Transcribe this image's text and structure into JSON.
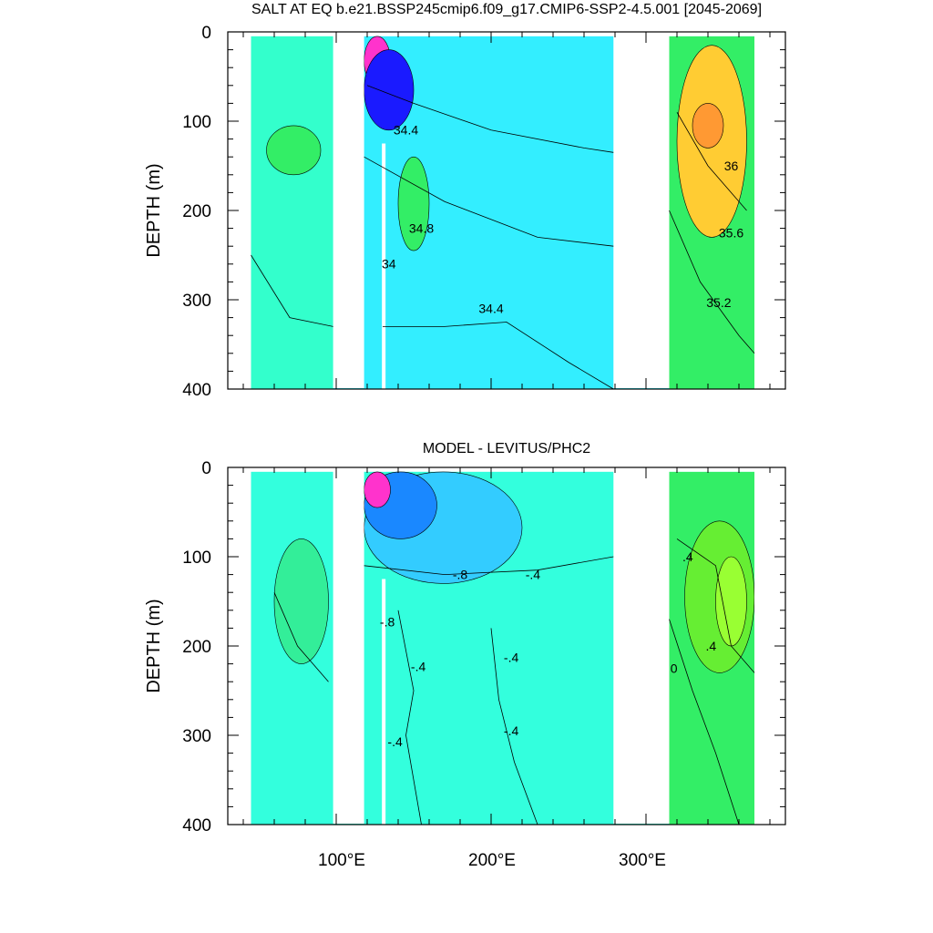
{
  "chart_data": [
    {
      "type": "heatmap",
      "title": "SALT AT EQ b.e21.BSSP245cmip6.f09_g17.CMIP6-SSP2-4.5.001 [2045-2069]",
      "ylabel": "DEPTH (m)",
      "xlim": [
        30,
        390
      ],
      "ylim": [
        400,
        0
      ],
      "yticks": [
        0,
        100,
        200,
        300,
        400
      ],
      "xticks": [
        100,
        200,
        300
      ],
      "grid": false,
      "land_columns_deg_e": [
        [
          98,
          118
        ],
        [
          279,
          315
        ]
      ],
      "background_color": "#33eeff",
      "regions": [
        {
          "lon": [
            45,
            98
          ],
          "depth": [
            5,
            400
          ],
          "value": 34.6,
          "color": "#33ffcc"
        },
        {
          "lon": [
            55,
            90
          ],
          "depth": [
            105,
            160
          ],
          "value": 35.0,
          "color": "#33ee66"
        },
        {
          "lon": [
            118,
            279
          ],
          "depth": [
            5,
            400
          ],
          "value": 34.2,
          "color": "#33eeff"
        },
        {
          "lon": [
            118,
            135
          ],
          "depth": [
            5,
            60
          ],
          "value": 32.5,
          "color": "#ff33cc"
        },
        {
          "lon": [
            118,
            150
          ],
          "depth": [
            20,
            110
          ],
          "value": 33.0,
          "color": "#1a1aff"
        },
        {
          "lon": [
            140,
            160
          ],
          "depth": [
            140,
            245
          ],
          "value": 34.8,
          "color": "#33ee66"
        },
        {
          "lon": [
            315,
            370
          ],
          "depth": [
            5,
            400
          ],
          "value": 35.4,
          "color": "#33ee66"
        },
        {
          "lon": [
            320,
            365
          ],
          "depth": [
            15,
            230
          ],
          "value": 36.0,
          "color": "#ffcc33"
        },
        {
          "lon": [
            330,
            350
          ],
          "depth": [
            80,
            130
          ],
          "value": 36.2,
          "color": "#ff9933"
        }
      ],
      "contour_labels": [
        {
          "text": "34.4",
          "lon": 145,
          "depth": 115
        },
        {
          "text": "34.8",
          "lon": 155,
          "depth": 225
        },
        {
          "text": "34",
          "lon": 134,
          "depth": 265
        },
        {
          "text": "34.4",
          "lon": 200,
          "depth": 315
        },
        {
          "text": "36",
          "lon": 355,
          "depth": 155
        },
        {
          "text": "35.6",
          "lon": 355,
          "depth": 230
        },
        {
          "text": "35.2",
          "lon": 347,
          "depth": 308
        }
      ]
    },
    {
      "type": "heatmap",
      "title": "MODEL - LEVITUS/PHC2",
      "ylabel": "DEPTH (m)",
      "xlim": [
        30,
        390
      ],
      "ylim": [
        400,
        0
      ],
      "yticks": [
        0,
        100,
        200,
        300,
        400
      ],
      "xticks": [
        100,
        200,
        300
      ],
      "grid": false,
      "land_columns_deg_e": [
        [
          98,
          118
        ],
        [
          279,
          315
        ]
      ],
      "background_color": "#33ffdd",
      "regions": [
        {
          "lon": [
            45,
            98
          ],
          "depth": [
            5,
            400
          ],
          "value": -0.2,
          "color": "#33ffdd"
        },
        {
          "lon": [
            60,
            95
          ],
          "depth": [
            80,
            220
          ],
          "value": 0.1,
          "color": "#33ee99"
        },
        {
          "lon": [
            118,
            279
          ],
          "depth": [
            5,
            400
          ],
          "value": -0.2,
          "color": "#33ffdd"
        },
        {
          "lon": [
            118,
            220
          ],
          "depth": [
            5,
            130
          ],
          "value": -0.6,
          "color": "#33ccff"
        },
        {
          "lon": [
            118,
            165
          ],
          "depth": [
            5,
            80
          ],
          "value": -1.0,
          "color": "#1a88ff"
        },
        {
          "lon": [
            118,
            135
          ],
          "depth": [
            5,
            45
          ],
          "value": -2.0,
          "color": "#ff33cc"
        },
        {
          "lon": [
            315,
            370
          ],
          "depth": [
            5,
            400
          ],
          "value": 0.2,
          "color": "#33ee66"
        },
        {
          "lon": [
            325,
            370
          ],
          "depth": [
            60,
            230
          ],
          "value": 0.4,
          "color": "#66ee33"
        },
        {
          "lon": [
            345,
            365
          ],
          "depth": [
            100,
            200
          ],
          "value": 0.6,
          "color": "#99ff33"
        }
      ],
      "contour_labels": [
        {
          "text": "-.8",
          "lon": 180,
          "depth": 125
        },
        {
          "text": "-.4",
          "lon": 227,
          "depth": 125
        },
        {
          "text": "-.8",
          "lon": 133,
          "depth": 178
        },
        {
          "text": "-.4",
          "lon": 153,
          "depth": 228
        },
        {
          "text": "-.4",
          "lon": 213,
          "depth": 218
        },
        {
          "text": "-.4",
          "lon": 213,
          "depth": 300
        },
        {
          "text": "-.4",
          "lon": 138,
          "depth": 312
        },
        {
          "text": ".4",
          "lon": 327,
          "depth": 105
        },
        {
          "text": ".4",
          "lon": 342,
          "depth": 205
        },
        {
          "text": "0",
          "lon": 318,
          "depth": 230
        }
      ]
    }
  ],
  "panels": [
    {
      "title": "SALT AT EQ b.e21.BSSP245cmip6.f09_g17.CMIP6-SSP2-4.5.001 [2045-2069]",
      "ylabel": "DEPTH (m)"
    },
    {
      "title": "MODEL - LEVITUS/PHC2",
      "ylabel": "DEPTH (m)"
    }
  ],
  "y_tick_labels": [
    "0",
    "100",
    "200",
    "300",
    "400"
  ],
  "x_tick_labels": [
    "100°E",
    "200°E",
    "300°E"
  ]
}
